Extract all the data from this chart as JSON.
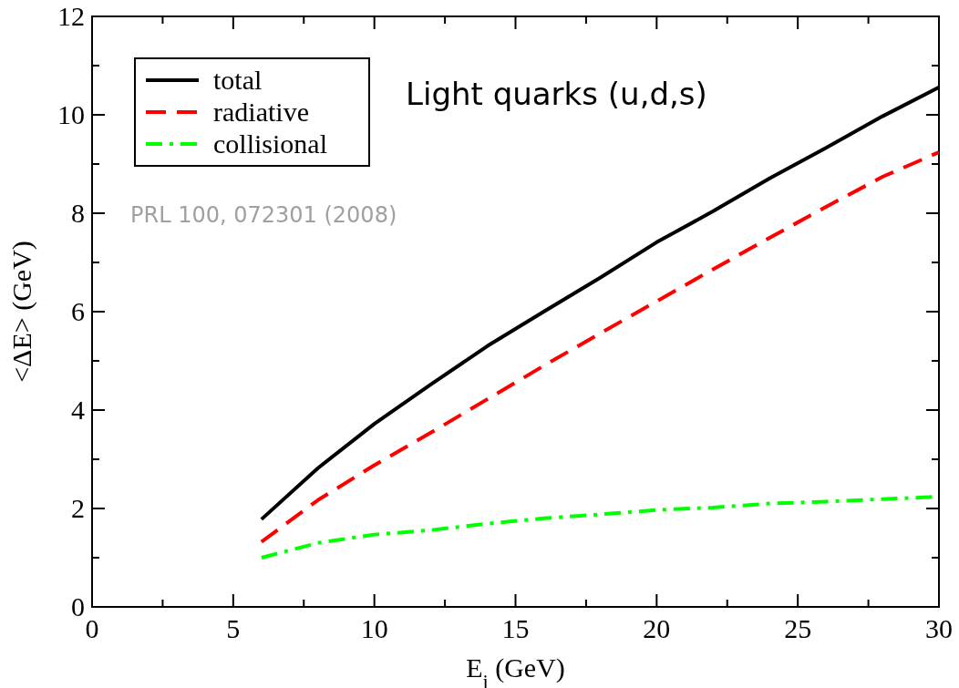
{
  "chart_data": {
    "type": "line",
    "xlabel": "E$_{i}$ (GeV)",
    "ylabel": "<ΔE> (GeV)",
    "x": [
      6,
      8,
      10,
      12,
      14,
      16,
      18,
      20,
      22,
      24,
      26,
      28,
      30
    ],
    "series": [
      {
        "name": "total",
        "color": "#000000",
        "line_style": "solid",
        "values": [
          1.78,
          2.82,
          3.72,
          4.52,
          5.3,
          6.0,
          6.69,
          7.41,
          8.04,
          8.71,
          9.33,
          9.97,
          10.56
        ]
      },
      {
        "name": "radiative",
        "color": "#ff0000",
        "line_style": "dashed",
        "values": [
          1.32,
          2.17,
          2.88,
          3.54,
          4.22,
          4.9,
          5.56,
          6.21,
          6.86,
          7.5,
          8.13,
          8.74,
          9.24
        ]
      },
      {
        "name": "collisional",
        "color": "#00ff00",
        "line_style": "dashdot",
        "values": [
          1.0,
          1.3,
          1.47,
          1.56,
          1.69,
          1.8,
          1.88,
          1.97,
          2.02,
          2.1,
          2.14,
          2.19,
          2.24
        ]
      }
    ],
    "xlim": [
      0,
      30
    ],
    "ylim": [
      0,
      12
    ],
    "xticks": [
      0,
      {
        "value": 2.5,
        "label": null
      },
      5,
      {
        "value": 7.5,
        "label": null
      },
      10,
      {
        "value": 12.5,
        "label": null
      },
      15,
      {
        "value": 17.5,
        "label": null
      },
      20,
      {
        "value": 22.5,
        "label": null
      },
      25,
      {
        "value": 27.5,
        "label": null
      },
      30
    ],
    "yticks": [
      0,
      {
        "value": 1,
        "label": null
      },
      2,
      {
        "value": 3,
        "label": null
      },
      4,
      {
        "value": 5,
        "label": null
      },
      6,
      {
        "value": 7,
        "label": null
      },
      8,
      {
        "value": 9,
        "label": null
      },
      10,
      {
        "value": 11,
        "label": null
      },
      12
    ],
    "legend": "top left",
    "grid": false,
    "annotations": [
      "Light quarks (u,d,s)",
      "PRL 100, 072301 (2008)"
    ]
  }
}
